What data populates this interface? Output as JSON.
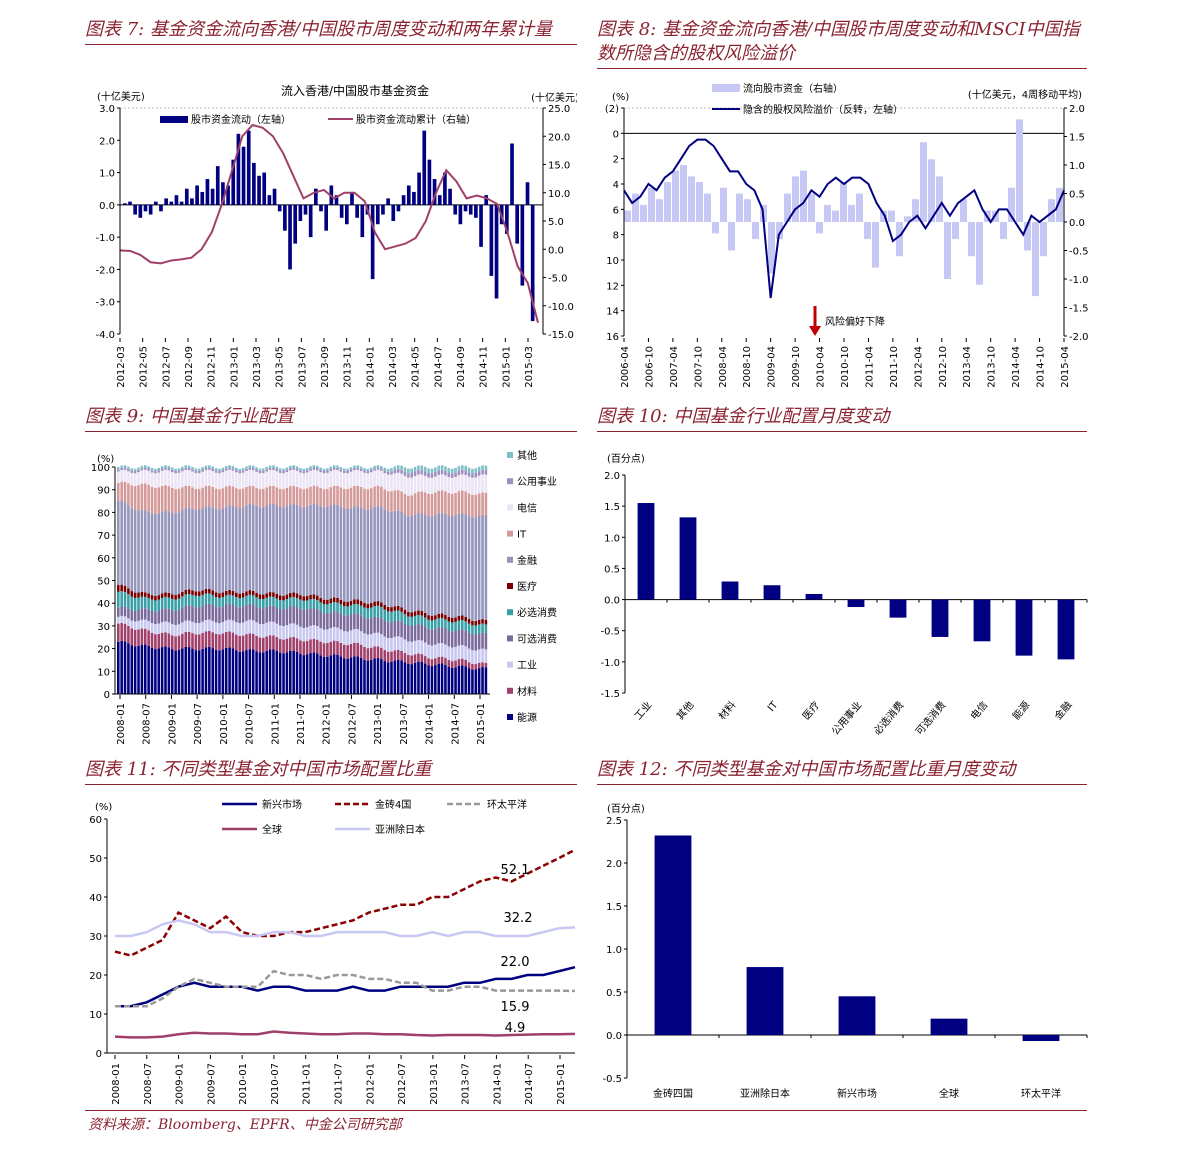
{
  "titles": {
    "f7": "图表 7:  基金资金流向香港/中国股市周度变动和两年累计量",
    "f8": "图表 8:  基金资金流向香港/中国股市周度变动和MSCI中国指数所隐含的股权风险溢价",
    "f9": "图表 9:  中国基金行业配置",
    "f10": "图表 10:  中国基金行业配置月度变动",
    "f11": "图表 11:  不同类型基金对中国市场配置比重",
    "f12": "图表 12:  不同类型基金对中国市场配置比重月度变动"
  },
  "source": "资料来源：Bloomberg、EPFR、中金公司研究部",
  "colors": {
    "navy": "#000080",
    "maroon": "#A0406A",
    "title": "#8B2332",
    "lavender": "#C8C8F5",
    "darkred": "#8B0000",
    "grey": "#999999"
  },
  "chart_data": [
    {
      "id": "f7",
      "type": "bar+line",
      "title": "流入香港/中国股市基金资金",
      "ylabel_left": "(十亿美元)",
      "ylabel_right": "(十亿美元)",
      "ylim_left": [
        -4,
        3
      ],
      "yticks_left": [
        "3.0",
        "2.0",
        "1.0",
        "0.0",
        "-1.0",
        "-2.0",
        "-3.0",
        "-4.0"
      ],
      "ylim_right": [
        -15,
        25
      ],
      "yticks_right": [
        "25.0",
        "20.0",
        "15.0",
        "10.0",
        "5.0",
        "0.0",
        "-5.0",
        "-10.0",
        "-15.0"
      ],
      "xticks": [
        "2012-03",
        "2012-05",
        "2012-07",
        "2012-09",
        "2012-11",
        "2013-01",
        "2013-03",
        "2013-05",
        "2013-07",
        "2013-09",
        "2013-11",
        "2014-01",
        "2014-03",
        "2014-05",
        "2014-07",
        "2014-09",
        "2014-11",
        "2015-01",
        "2015-03"
      ],
      "legend": [
        "股市资金流动（左轴）",
        "股市资金流动累计（右轴）"
      ],
      "bars": [
        0.05,
        0.1,
        -0.3,
        -0.4,
        -0.2,
        -0.3,
        0.1,
        -0.2,
        0.2,
        0.1,
        0.3,
        0.1,
        0.5,
        0.2,
        0.6,
        0.4,
        0.8,
        0.5,
        1.2,
        0.7,
        0.6,
        1.4,
        2.2,
        1.8,
        2.3,
        1.3,
        0.9,
        1.0,
        0.3,
        0.5,
        -0.2,
        -0.8,
        -2.0,
        -1.2,
        -0.5,
        -0.3,
        -1.0,
        0.5,
        -0.2,
        -0.8,
        0.6,
        0.3,
        -0.4,
        -0.6,
        0.4,
        -0.4,
        -1.0,
        -0.3,
        -2.3,
        -0.6,
        -0.3,
        0.2,
        -0.5,
        -0.2,
        0.3,
        0.6,
        0.4,
        1.0,
        2.3,
        1.4,
        0.8,
        0.3,
        1.0,
        0.5,
        -0.3,
        -0.6,
        -0.2,
        -0.3,
        -0.4,
        -1.3,
        0.3,
        -2.2,
        -2.9,
        -0.6,
        -0.9,
        1.9,
        -1.2,
        -2.5,
        0.7,
        -3.6
      ],
      "line": [
        -0.2,
        -0.3,
        -1,
        -2.3,
        -2.5,
        -2,
        -1.8,
        -1.5,
        0,
        3,
        8,
        14,
        20,
        22,
        21.5,
        20,
        17,
        13,
        9,
        10,
        10.5,
        9,
        10,
        10,
        8.5,
        3,
        0,
        0.5,
        1,
        2,
        5,
        10,
        14,
        12,
        9,
        9.5,
        9,
        8,
        3,
        -3,
        -6,
        -13
      ]
    },
    {
      "id": "f8",
      "type": "bar+line",
      "ylabel_left": "(%)",
      "ylabel_right": "(十亿美元，4周移动平均)",
      "ylim_left": [
        -2,
        16
      ],
      "left_inverted": true,
      "yticks_left": [
        "(2)",
        "0",
        "2",
        "4",
        "6",
        "8",
        "10",
        "12",
        "14",
        "16"
      ],
      "ylim_right": [
        -2,
        2
      ],
      "yticks_right": [
        "2.0",
        "1.5",
        "1.0",
        "0.5",
        "0.0",
        "-0.5",
        "-1.0",
        "-1.5",
        "-2.0"
      ],
      "xticks": [
        "2006-04",
        "2006-10",
        "2007-04",
        "2007-10",
        "2008-04",
        "2008-10",
        "2009-04",
        "2009-10",
        "2010-04",
        "2010-10",
        "2011-04",
        "2011-10",
        "2012-04",
        "2012-10",
        "2013-04",
        "2013-10",
        "2014-04",
        "2014-10",
        "2015-04"
      ],
      "legend": [
        "流向股市资金（右轴）",
        "隐含的股权风险溢价（反转，左轴）"
      ],
      "annotation": "风险偏好下降",
      "bars": [
        0.2,
        0.5,
        0.3,
        0.6,
        0.4,
        0.7,
        0.9,
        1.0,
        0.8,
        0.7,
        0.5,
        -0.2,
        0.6,
        -0.5,
        0.5,
        0.4,
        -0.3,
        0.3,
        -0.9,
        -0.3,
        0.5,
        0.8,
        0.9,
        0.5,
        -0.2,
        0.3,
        0.2,
        0.7,
        0.3,
        0.5,
        -0.3,
        -0.8,
        0.2,
        0.2,
        -0.6,
        0.1,
        0.4,
        1.4,
        1.1,
        0.8,
        -1.0,
        -0.3,
        0.4,
        -0.6,
        -1.1,
        0.2,
        0.2,
        -0.3,
        0.6,
        1.8,
        -0.5,
        -1.3,
        -0.6,
        0.4,
        0.6
      ],
      "line": [
        4.5,
        5.5,
        5,
        4,
        4.5,
        3.5,
        3,
        2,
        1,
        0.5,
        0.5,
        1,
        2,
        3,
        3,
        4,
        4.5,
        6,
        13,
        8,
        7,
        6,
        5.5,
        4.5,
        5,
        4,
        3.5,
        4,
        3.5,
        3.5,
        4,
        5.5,
        6.5,
        8.5,
        8,
        7,
        6.5,
        7.5,
        6.5,
        5.5,
        6.5,
        5.5,
        5,
        4.5,
        6,
        7,
        6,
        6,
        7,
        8,
        6.5,
        7,
        6.5,
        6,
        4.5
      ]
    },
    {
      "id": "f9",
      "type": "stacked-bar",
      "ylabel": "(%)",
      "ylim": [
        0,
        100
      ],
      "yticks": [
        "100",
        "90",
        "80",
        "70",
        "60",
        "50",
        "40",
        "30",
        "20",
        "10",
        "0"
      ],
      "xticks": [
        "2008-01",
        "2008-07",
        "2009-01",
        "2009-07",
        "2010-01",
        "2010-07",
        "2011-01",
        "2011-07",
        "2012-01",
        "2012-07",
        "2013-01",
        "2013-07",
        "2014-01",
        "2014-07",
        "2015-01"
      ],
      "series": [
        {
          "name": "能源",
          "color": "#000080"
        },
        {
          "name": "材料",
          "color": "#A0406A"
        },
        {
          "name": "工业",
          "color": "#C8C8F0"
        },
        {
          "name": "可选消费",
          "color": "#7B6A9C"
        },
        {
          "name": "必选消费",
          "color": "#3AA0A8"
        },
        {
          "name": "医疗",
          "color": "#7A0000"
        },
        {
          "name": "金融",
          "color": "#9494BC"
        },
        {
          "name": "IT",
          "color": "#D49A9A"
        },
        {
          "name": "电信",
          "color": "#ECE4F4"
        },
        {
          "name": "公用事业",
          "color": "#A090C0"
        },
        {
          "name": "其他",
          "color": "#80C0C8"
        }
      ],
      "values": [
        [
          23,
          8,
          3,
          4,
          7,
          3,
          37,
          8,
          5,
          1,
          1
        ],
        [
          21,
          7,
          4,
          5,
          5,
          2,
          36,
          12,
          6,
          1,
          1
        ],
        [
          20,
          6,
          5,
          6,
          5,
          2,
          36,
          11,
          7,
          1,
          1
        ],
        [
          20,
          7,
          5,
          7,
          5,
          2,
          36,
          9,
          7,
          1,
          1
        ],
        [
          20,
          7,
          5,
          7,
          4,
          2,
          37,
          9,
          7,
          1,
          1
        ],
        [
          19,
          7,
          6,
          7,
          4,
          2,
          38,
          8,
          7,
          1,
          1
        ],
        [
          19,
          6,
          6,
          7,
          4,
          2,
          39,
          8,
          7,
          1,
          1
        ],
        [
          18,
          6,
          6,
          8,
          4,
          2,
          39,
          8,
          7,
          1,
          1
        ],
        [
          17,
          6,
          6,
          7,
          4,
          2,
          41,
          8,
          7,
          1,
          1
        ],
        [
          16,
          6,
          6,
          7,
          4,
          2,
          41,
          9,
          7,
          1,
          1
        ],
        [
          15,
          5,
          6,
          7,
          5,
          2,
          42,
          9,
          7,
          1,
          1
        ],
        [
          14,
          4,
          6,
          7,
          4,
          2,
          42,
          9,
          8,
          2,
          2
        ],
        [
          13,
          3,
          6,
          7,
          4,
          2,
          44,
          10,
          7,
          2,
          2
        ],
        [
          12,
          3,
          6,
          7,
          4,
          2,
          45,
          10,
          7,
          2,
          2
        ],
        [
          11,
          2,
          6,
          7,
          4,
          2,
          46,
          10,
          8,
          2,
          2
        ]
      ]
    },
    {
      "id": "f10",
      "type": "bar",
      "ylabel": "(百分点)",
      "ylim": [
        -1.5,
        2.0
      ],
      "yticks": [
        "2.0",
        "1.5",
        "1.0",
        "0.5",
        "0.0",
        "-0.5",
        "-1.0",
        "-1.5"
      ],
      "categories": [
        "工业",
        "其他",
        "材料",
        "IT",
        "医疗",
        "公用事业",
        "必选消费",
        "可选消费",
        "电信",
        "能源",
        "金融"
      ],
      "values": [
        1.55,
        1.32,
        0.29,
        0.23,
        0.09,
        -0.12,
        -0.29,
        -0.6,
        -0.67,
        -0.9,
        -0.96
      ]
    },
    {
      "id": "f11",
      "type": "line",
      "ylabel": "(%)",
      "ylim": [
        0,
        60
      ],
      "yticks": [
        "60",
        "50",
        "40",
        "30",
        "20",
        "10",
        "0"
      ],
      "xticks": [
        "2008-01",
        "2008-07",
        "2009-01",
        "2009-07",
        "2010-01",
        "2010-07",
        "2011-01",
        "2011-07",
        "2012-01",
        "2012-07",
        "2013-01",
        "2013-07",
        "2014-01",
        "2014-07",
        "2015-01"
      ],
      "series": [
        {
          "name": "新兴市场",
          "color": "#000080",
          "dash": "",
          "label": "22.0",
          "values": [
            12,
            12,
            13,
            15,
            17,
            18,
            17,
            17,
            17,
            16,
            17,
            17,
            16,
            16,
            16,
            17,
            16,
            16,
            17,
            17,
            17,
            17,
            18,
            18,
            19,
            19,
            20,
            20,
            21,
            22.0
          ]
        },
        {
          "name": "金砖4国",
          "color": "#8B0000",
          "dash": "6,3",
          "label": "52.1",
          "values": [
            26,
            25,
            27,
            29,
            36,
            34,
            32,
            35,
            31,
            30,
            30,
            31,
            31,
            32,
            33,
            34,
            36,
            37,
            38,
            38,
            40,
            40,
            42,
            44,
            45,
            44,
            46,
            48,
            50,
            52.1
          ]
        },
        {
          "name": "环太平洋",
          "color": "#999999",
          "dash": "6,3",
          "label": "15.9",
          "values": [
            12,
            12,
            12,
            14,
            17,
            19,
            18,
            17,
            17,
            17,
            21,
            20,
            20,
            19,
            20,
            20,
            19,
            19,
            18,
            18,
            16,
            16,
            17,
            17,
            16,
            16,
            16,
            16,
            16,
            15.9
          ]
        },
        {
          "name": "全球",
          "color": "#A0406A",
          "dash": "",
          "label": "4.9",
          "values": [
            4.2,
            4,
            4,
            4.2,
            4.8,
            5.2,
            5,
            5,
            4.8,
            4.8,
            5.5,
            5.2,
            5,
            4.8,
            4.8,
            5,
            5,
            4.8,
            4.8,
            4.6,
            4.5,
            4.6,
            4.6,
            4.6,
            4.5,
            4.6,
            4.7,
            4.8,
            4.8,
            4.9
          ]
        },
        {
          "name": "亚洲除日本",
          "color": "#C8C8F5",
          "dash": "",
          "label": "32.2",
          "values": [
            30,
            30,
            31,
            33,
            34,
            33,
            31,
            31,
            30,
            30,
            31,
            31,
            30,
            30,
            31,
            31,
            31,
            31,
            30,
            30,
            31,
            30,
            31,
            31,
            30,
            30,
            30,
            31,
            32,
            32.2
          ]
        }
      ]
    },
    {
      "id": "f12",
      "type": "bar",
      "ylabel": "(百分点)",
      "ylim": [
        -0.5,
        2.5
      ],
      "yticks": [
        "2.5",
        "2.0",
        "1.5",
        "1.0",
        "0.5",
        "0.0",
        "-0.5"
      ],
      "categories": [
        "金砖四国",
        "亚洲除日本",
        "新兴市场",
        "全球",
        "环太平洋"
      ],
      "values": [
        2.32,
        0.79,
        0.45,
        0.19,
        -0.07
      ]
    }
  ]
}
